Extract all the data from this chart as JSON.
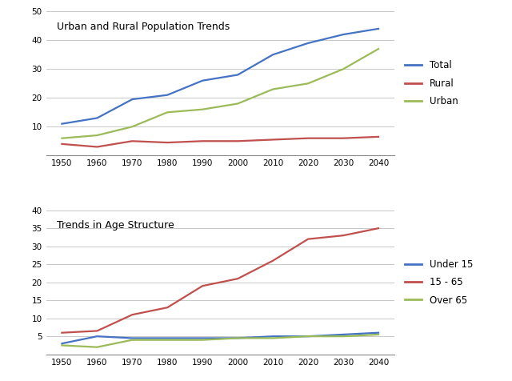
{
  "years": [
    1950,
    1960,
    1970,
    1980,
    1990,
    2000,
    2010,
    2020,
    2030,
    2040
  ],
  "top_chart": {
    "title": "Urban and Rural Population Trends",
    "total": [
      11,
      13,
      19.5,
      21,
      26,
      28,
      35,
      39,
      42,
      44
    ],
    "rural": [
      4,
      3,
      5,
      4.5,
      5,
      5,
      5.5,
      6,
      6,
      6.5
    ],
    "urban": [
      6,
      7,
      10,
      15,
      16,
      18,
      23,
      25,
      30,
      37
    ],
    "colors": {
      "Total": "#4472C4",
      "Rural": "#C0504D",
      "Urban": "#9BBB59"
    },
    "ylim": [
      0,
      50
    ],
    "yticks": [
      0,
      10,
      20,
      30,
      40,
      50
    ]
  },
  "bottom_chart": {
    "title": "Trends in Age Structure",
    "under15": [
      3,
      5,
      4.5,
      4.5,
      4.5,
      4.5,
      5,
      5,
      5.5,
      6
    ],
    "age1565": [
      6,
      6.5,
      11,
      13,
      19,
      21,
      26,
      32,
      33,
      35
    ],
    "over65": [
      2.5,
      2,
      4,
      4,
      4,
      4.5,
      4.5,
      5,
      5,
      5.5
    ],
    "colors": {
      "Under 15": "#4472C4",
      "15 - 65": "#C0504D",
      "Over 65": "#9BBB59"
    },
    "ylim": [
      0,
      40
    ],
    "yticks": [
      0,
      5,
      10,
      15,
      20,
      25,
      30,
      35,
      40
    ]
  },
  "background_color": "#FFFFFF",
  "grid_color": "#C8C8C8",
  "line_width": 1.6
}
